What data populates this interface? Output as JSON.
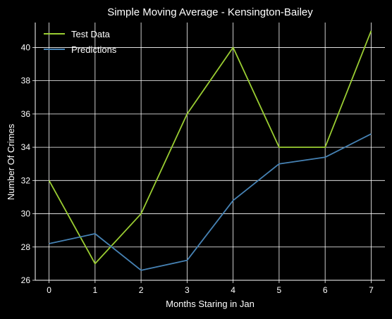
{
  "chart_data": {
    "type": "line",
    "title": "Simple Moving Average - Kensington-Bailey",
    "xlabel": "Months Staring in Jan",
    "ylabel": "Number Of Crimes",
    "x": [
      0,
      1,
      2,
      3,
      4,
      5,
      6,
      7
    ],
    "xticks": [
      0,
      1,
      2,
      3,
      4,
      5,
      6,
      7
    ],
    "yticks": [
      26,
      28,
      30,
      32,
      34,
      36,
      38,
      40
    ],
    "xlim": [
      -0.3,
      7.3
    ],
    "ylim": [
      26,
      41.5
    ],
    "grid": true,
    "legend_position": "top-left",
    "background_color": "#000000",
    "series": [
      {
        "name": "Test Data",
        "color": "#9acd32",
        "values": [
          32,
          27,
          30,
          36,
          40,
          34,
          34,
          41
        ]
      },
      {
        "name": "Predictions",
        "color": "#4682b4",
        "values": [
          28.2,
          28.8,
          26.6,
          27.2,
          30.8,
          33.0,
          33.4,
          34.8
        ]
      }
    ]
  }
}
